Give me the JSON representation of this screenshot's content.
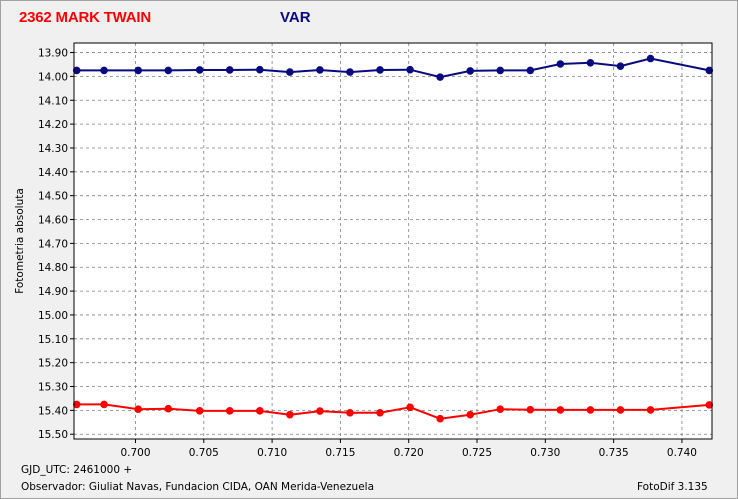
{
  "header": {
    "object_name": "2362 MARK TWAIN",
    "variable_label": "VAR"
  },
  "footer": {
    "gjd_label": "GJD_UTC: 2461000 +",
    "observer": "Observador: Giuliat Navas, Fundacion CIDA, OAN  Merida-Venezuela",
    "software": "FotoDif 3.135"
  },
  "colors": {
    "series_var": "#0a0a80",
    "series_comp": "#ff0000",
    "title_object": "#ff0000",
    "title_var": "#0a0a80"
  },
  "chart_data": {
    "type": "line",
    "title": "",
    "xlabel": "",
    "ylabel": "Fotometria absoluta",
    "xlim": [
      0.6955,
      0.7422
    ],
    "ylim": [
      13.86,
      15.52
    ],
    "y_inverted": true,
    "grid": true,
    "legend": "none",
    "x_ticks": [
      0.7,
      0.705,
      0.71,
      0.715,
      0.72,
      0.725,
      0.73,
      0.735,
      0.74
    ],
    "x_tick_labels": [
      "0.700",
      "0.705",
      "0.710",
      "0.715",
      "0.720",
      "0.725",
      "0.730",
      "0.735",
      "0.740"
    ],
    "y_ticks": [
      13.9,
      14.0,
      14.1,
      14.2,
      14.3,
      14.4,
      14.5,
      14.6,
      14.7,
      14.8,
      14.9,
      15.0,
      15.1,
      15.2,
      15.3,
      15.4,
      15.5
    ],
    "y_tick_labels": [
      "13.90",
      "14.00",
      "14.10",
      "14.20",
      "14.30",
      "14.40",
      "14.50",
      "14.60",
      "14.70",
      "14.80",
      "14.90",
      "15.00",
      "15.10",
      "15.20",
      "15.30",
      "15.40",
      "15.50"
    ],
    "series": [
      {
        "key": "var",
        "color": "#0a0a80",
        "x": [
          0.6957,
          0.6977,
          0.7002,
          0.7024,
          0.7047,
          0.7069,
          0.7091,
          0.7113,
          0.7135,
          0.7157,
          0.7179,
          0.7201,
          0.7223,
          0.7245,
          0.7267,
          0.7289,
          0.7311,
          0.7333,
          0.7355,
          0.7377,
          0.742
        ],
        "y": [
          13.975,
          13.975,
          13.975,
          13.975,
          13.973,
          13.973,
          13.972,
          13.982,
          13.973,
          13.982,
          13.973,
          13.972,
          14.003,
          13.977,
          13.975,
          13.975,
          13.948,
          13.943,
          13.957,
          13.925,
          13.975
        ]
      },
      {
        "key": "comp",
        "color": "#ff0000",
        "x": [
          0.6957,
          0.6977,
          0.7002,
          0.7024,
          0.7047,
          0.7069,
          0.7091,
          0.7113,
          0.7135,
          0.7157,
          0.7179,
          0.7201,
          0.7223,
          0.7245,
          0.7267,
          0.7289,
          0.7311,
          0.7333,
          0.7355,
          0.7377,
          0.742
        ],
        "y": [
          15.375,
          15.375,
          15.395,
          15.393,
          15.402,
          15.402,
          15.402,
          15.418,
          15.403,
          15.41,
          15.41,
          15.387,
          15.435,
          15.418,
          15.395,
          15.397,
          15.398,
          15.398,
          15.398,
          15.398,
          15.377
        ]
      }
    ]
  }
}
